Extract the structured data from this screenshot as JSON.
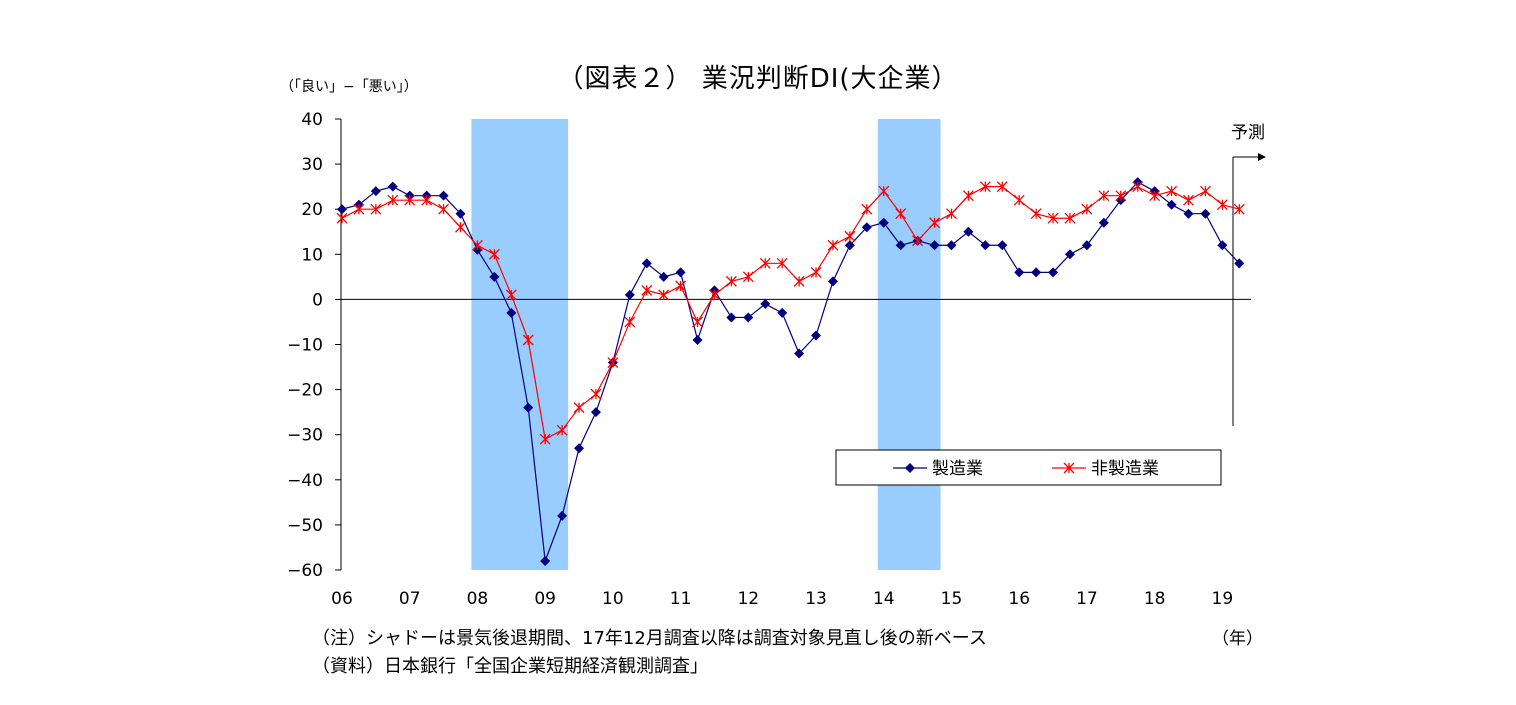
{
  "chart_data": {
    "type": "line",
    "title": "（図表２） 業況判断DI(大企業）",
    "ylabel": "（「良い」−「悪い」）",
    "xlabel": "（年）",
    "ylim": [
      -60,
      40
    ],
    "yticks": [
      "40",
      "30",
      "20",
      "10",
      "0",
      "−10",
      "−20",
      "−30",
      "−40",
      "−50",
      "−60"
    ],
    "x_tick_labels": [
      "06",
      "07",
      "08",
      "09",
      "10",
      "11",
      "12",
      "13",
      "14",
      "15",
      "16",
      "17",
      "18",
      "19"
    ],
    "forecast_label": "予測",
    "legend_position": "lower-right",
    "shaded_periods": [
      [
        8,
        13
      ],
      [
        32,
        35
      ]
    ],
    "series": [
      {
        "name": "製造業",
        "color": "#000080",
        "marker": "diamond",
        "values": [
          20,
          21,
          24,
          25,
          23,
          23,
          23,
          19,
          11,
          5,
          -3,
          -24,
          -58,
          -48,
          -33,
          -25,
          -14,
          1,
          8,
          5,
          6,
          -9,
          2,
          -4,
          -4,
          -1,
          -3,
          -12,
          -8,
          4,
          12,
          16,
          17,
          12,
          13,
          12,
          12,
          15,
          12,
          12,
          6,
          6,
          6,
          10,
          12,
          17,
          22,
          26,
          24,
          21,
          19,
          19,
          12,
          8
        ]
      },
      {
        "name": "非製造業",
        "color": "#ff0000",
        "marker": "asterisk",
        "values": [
          18,
          20,
          20,
          22,
          22,
          22,
          20,
          16,
          12,
          10,
          1,
          -9,
          -31,
          -29,
          -24,
          -21,
          -14,
          -5,
          2,
          1,
          3,
          -5,
          1,
          4,
          5,
          8,
          8,
          4,
          6,
          12,
          14,
          20,
          24,
          19,
          13,
          17,
          19,
          23,
          25,
          25,
          22,
          19,
          18,
          18,
          20,
          23,
          23,
          25,
          23,
          24,
          22,
          24,
          21,
          20
        ]
      }
    ]
  },
  "notes": {
    "note": "（注）シャドーは景気後退期間、17年12月調査以降は調査対象見直し後の新ベース",
    "source": "（資料）日本銀行「全国企業短期経済観測調査」"
  }
}
